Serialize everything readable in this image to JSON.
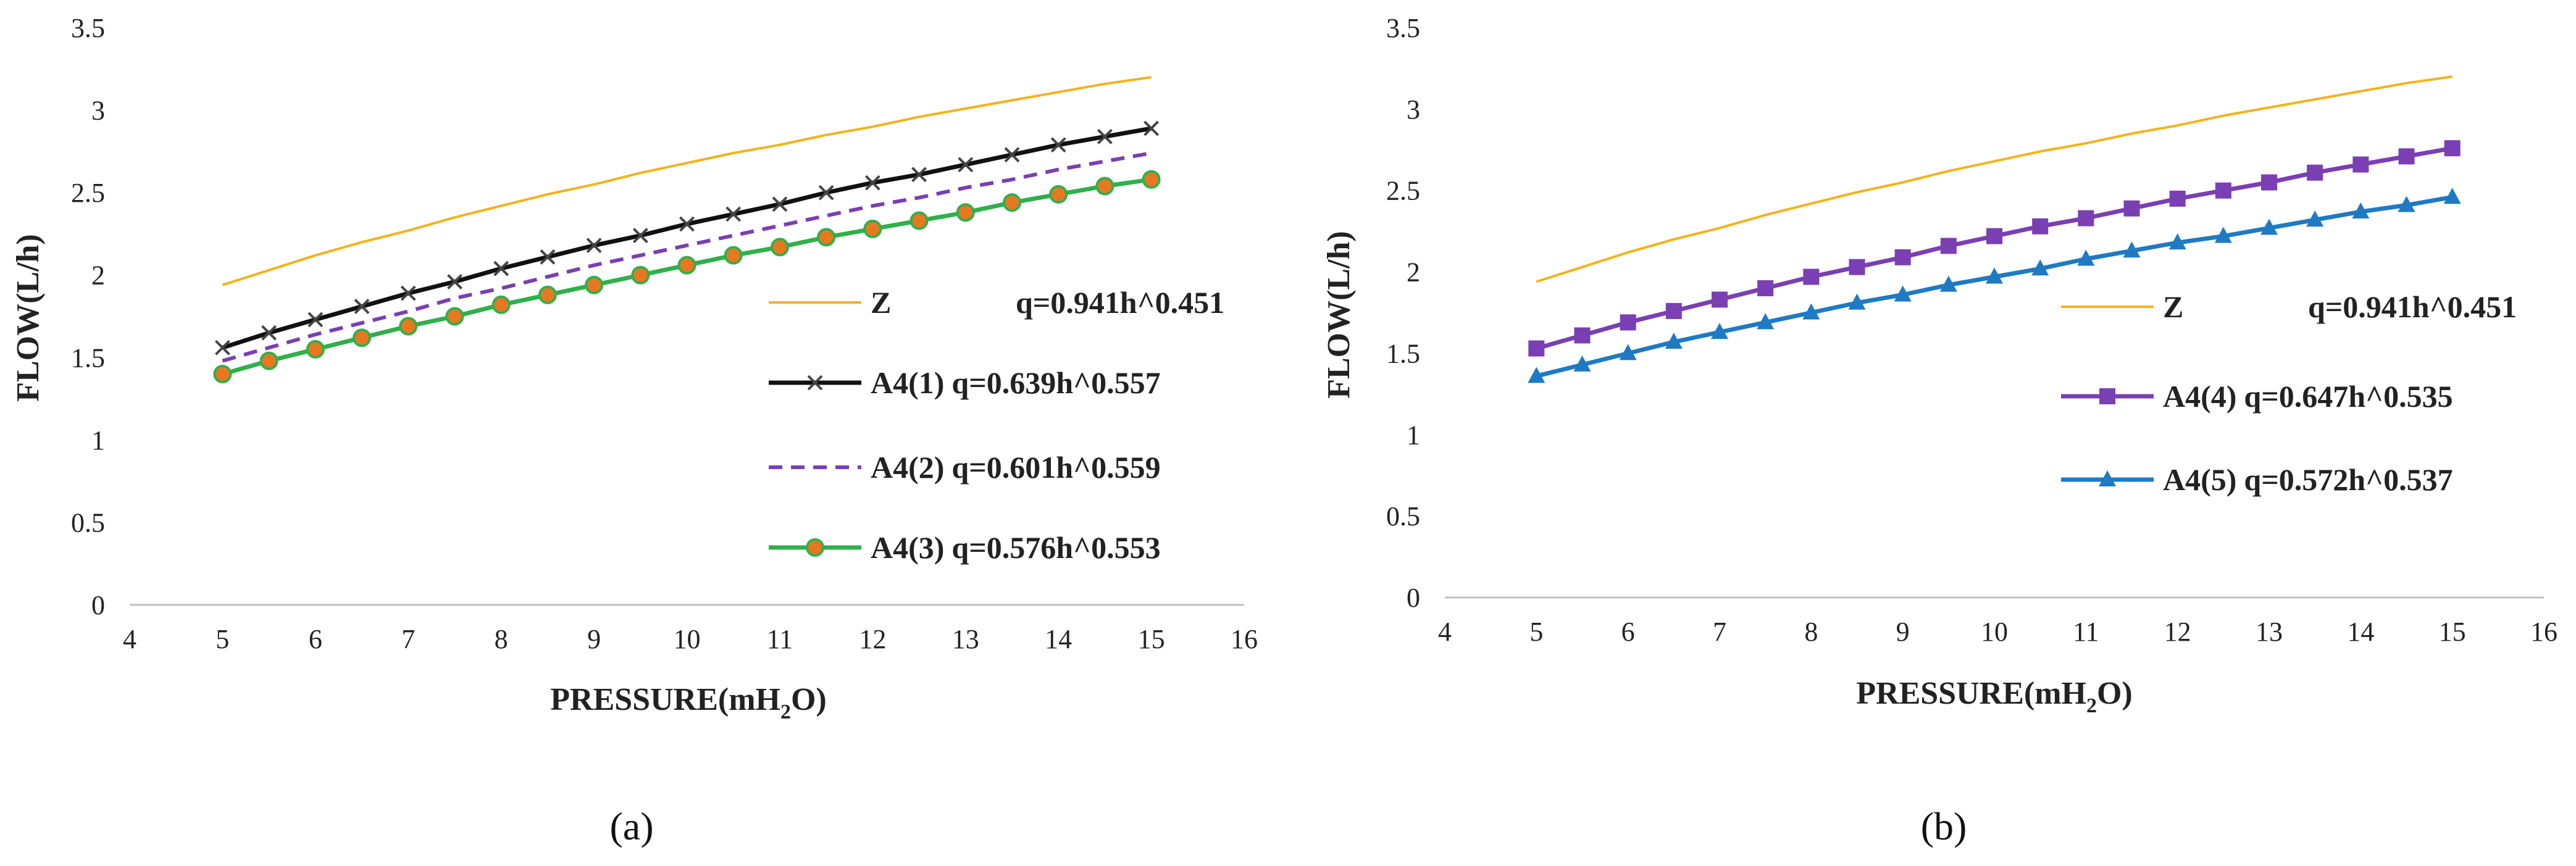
{
  "chart_data": [
    {
      "type": "line",
      "panel_label": "(a)",
      "xlabel": "PRESSURE(mH2O)",
      "xlabel_main": "PRESSURE(mH",
      "xlabel_sub": "2",
      "xlabel_end": "O)",
      "ylabel": "FLOW(L/h)",
      "xlim": [
        4,
        16
      ],
      "ylim": [
        0,
        3.5
      ],
      "xticks": [
        4,
        5,
        6,
        7,
        8,
        9,
        10,
        11,
        12,
        13,
        14,
        15,
        16
      ],
      "yticks": [
        0,
        0.5,
        1,
        1.5,
        2,
        2.5,
        3,
        3.5
      ],
      "ytick_labels": [
        "0",
        "0.5",
        "1",
        "1.5",
        "2",
        "2.5",
        "3",
        "3.5"
      ],
      "x": [
        5,
        5.5,
        6,
        6.5,
        7,
        7.5,
        8,
        8.5,
        9,
        9.5,
        10,
        10.5,
        11,
        11.5,
        12,
        12.5,
        13,
        13.5,
        14,
        14.5,
        15
      ],
      "series": [
        {
          "name": "Z",
          "equation": "q=0.941h^0.451",
          "color": "#f5b21a",
          "dash": "",
          "marker": "none",
          "width": 4,
          "values": [
            1.94,
            2.03,
            2.12,
            2.2,
            2.27,
            2.35,
            2.42,
            2.49,
            2.55,
            2.62,
            2.68,
            2.74,
            2.79,
            2.85,
            2.9,
            2.96,
            3.01,
            3.06,
            3.11,
            3.16,
            3.2
          ]
        },
        {
          "name": "A4(1)",
          "equation": "q=0.639h^0.557",
          "color": "#111111",
          "dash": "",
          "marker": "x",
          "width": 7,
          "values": [
            1.56,
            1.65,
            1.73,
            1.81,
            1.89,
            1.96,
            2.04,
            2.11,
            2.18,
            2.24,
            2.31,
            2.37,
            2.43,
            2.5,
            2.56,
            2.61,
            2.67,
            2.73,
            2.79,
            2.84,
            2.89
          ]
        },
        {
          "name": "A4(2)",
          "equation": "q=0.601h^0.559",
          "color": "#7a3fb3",
          "dash": "22,14",
          "marker": "none",
          "width": 6,
          "values": [
            1.48,
            1.56,
            1.64,
            1.71,
            1.78,
            1.86,
            1.92,
            1.99,
            2.06,
            2.12,
            2.18,
            2.24,
            2.3,
            2.36,
            2.42,
            2.47,
            2.53,
            2.58,
            2.64,
            2.69,
            2.74
          ]
        },
        {
          "name": "A4(3)",
          "equation": "q=0.576h^0.553",
          "color": "#2fb04a",
          "dash": "",
          "marker": "circle",
          "marker_fill": "#e87722",
          "width": 7,
          "values": [
            1.4,
            1.48,
            1.55,
            1.62,
            1.69,
            1.75,
            1.82,
            1.88,
            1.94,
            2.0,
            2.06,
            2.12,
            2.17,
            2.23,
            2.28,
            2.33,
            2.38,
            2.44,
            2.49,
            2.54,
            2.58
          ]
        }
      ]
    },
    {
      "type": "line",
      "panel_label": "(b)",
      "xlabel": "PRESSURE(mH2O)",
      "xlabel_main": "PRESSURE(mH",
      "xlabel_sub": "2",
      "xlabel_end": "O)",
      "ylabel": "FLOW(L/h)",
      "xlim": [
        4,
        16
      ],
      "ylim": [
        0,
        3.5
      ],
      "xticks": [
        4,
        5,
        6,
        7,
        8,
        9,
        10,
        11,
        12,
        13,
        14,
        15,
        16
      ],
      "yticks": [
        0,
        0.5,
        1,
        1.5,
        2,
        2.5,
        3,
        3.5
      ],
      "ytick_labels": [
        "0",
        "0.5",
        "1",
        "1.5",
        "2",
        "2.5",
        "3",
        "3.5"
      ],
      "x": [
        5,
        5.5,
        6,
        6.5,
        7,
        7.5,
        8,
        8.5,
        9,
        9.5,
        10,
        10.5,
        11,
        11.5,
        12,
        12.5,
        13,
        13.5,
        14,
        14.5,
        15
      ],
      "series": [
        {
          "name": "Z",
          "equation": "q=0.941h^0.451",
          "color": "#f5b21a",
          "dash": "",
          "marker": "none",
          "width": 4,
          "values": [
            1.94,
            2.03,
            2.12,
            2.2,
            2.27,
            2.35,
            2.42,
            2.49,
            2.55,
            2.62,
            2.68,
            2.74,
            2.79,
            2.85,
            2.9,
            2.96,
            3.01,
            3.06,
            3.11,
            3.16,
            3.2
          ]
        },
        {
          "name": "A4(4)",
          "equation": "q=0.647h^0.535",
          "color": "#7a3fb3",
          "dash": "",
          "marker": "square",
          "width": 7,
          "values": [
            1.53,
            1.61,
            1.69,
            1.76,
            1.83,
            1.9,
            1.97,
            2.03,
            2.09,
            2.16,
            2.22,
            2.28,
            2.33,
            2.39,
            2.45,
            2.5,
            2.55,
            2.61,
            2.66,
            2.71,
            2.76
          ]
        },
        {
          "name": "A4(5)",
          "equation": "q=0.572h^0.537",
          "color": "#1f7ac4",
          "dash": "",
          "marker": "triangle",
          "width": 7,
          "values": [
            1.36,
            1.43,
            1.5,
            1.57,
            1.63,
            1.69,
            1.75,
            1.81,
            1.86,
            1.92,
            1.97,
            2.02,
            2.08,
            2.13,
            2.18,
            2.22,
            2.27,
            2.32,
            2.37,
            2.41,
            2.46
          ]
        }
      ]
    }
  ]
}
